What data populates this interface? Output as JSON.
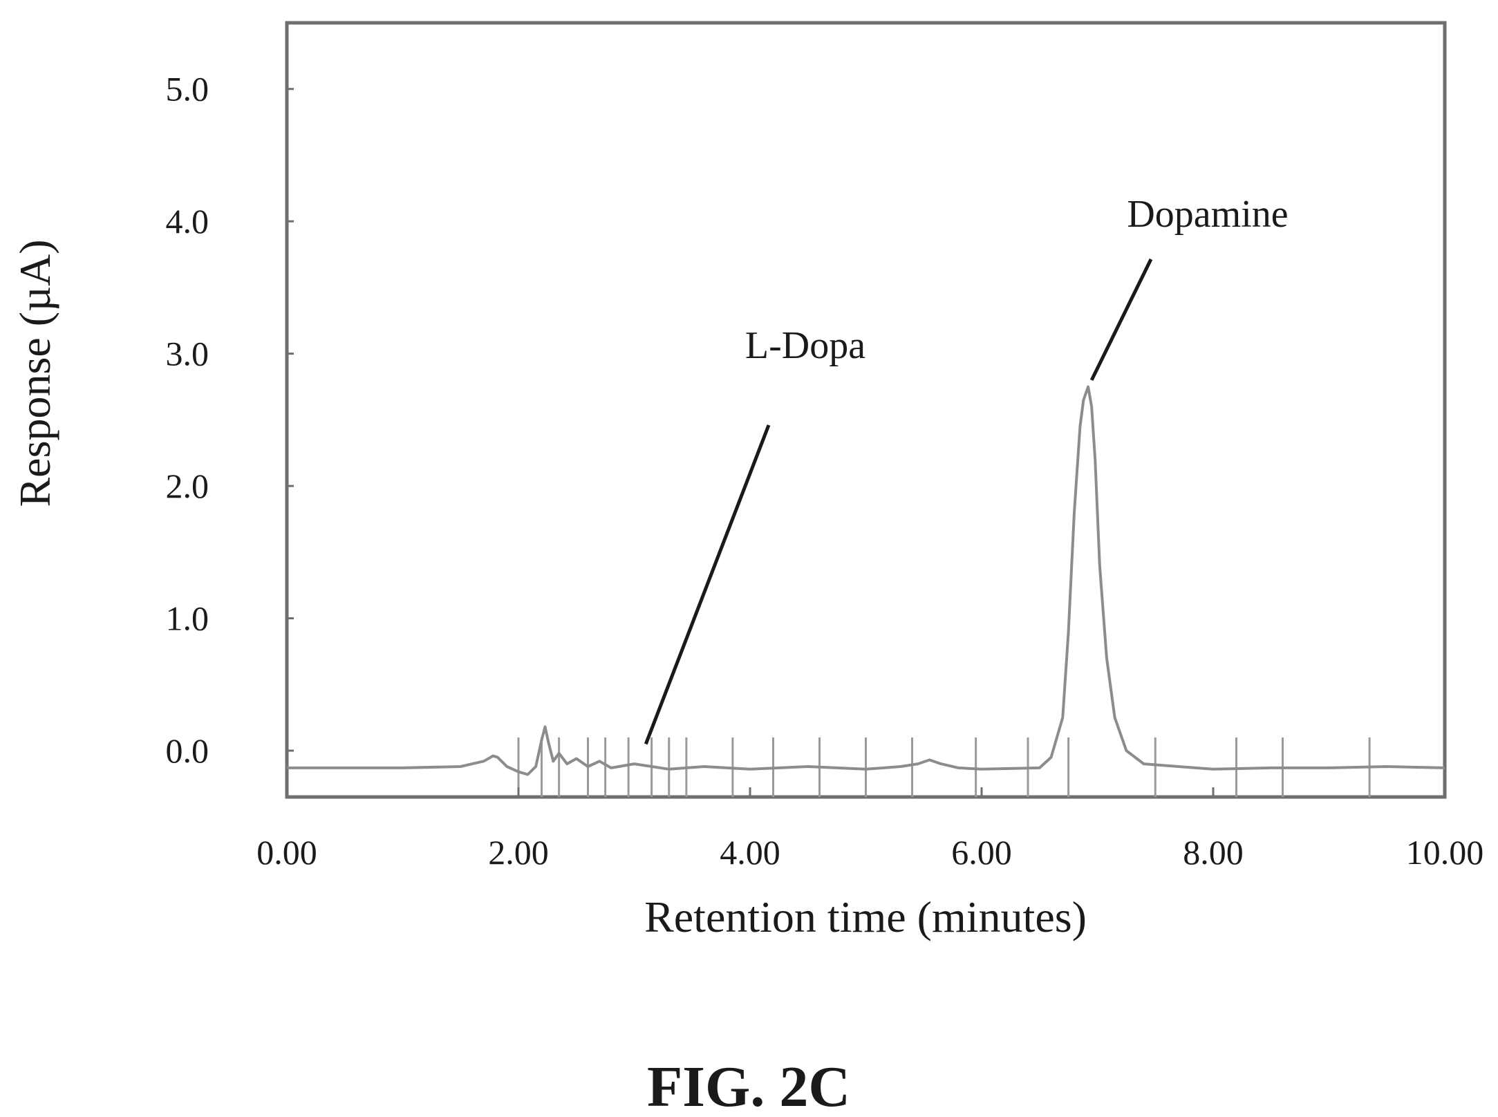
{
  "figure_label": "FIG. 2C",
  "chart_data": {
    "type": "line",
    "title": "",
    "xlabel": "Retention time (minutes)",
    "ylabel": "Response (µA)",
    "xlim": [
      0,
      10
    ],
    "ylim": [
      -0.35,
      5.5
    ],
    "x_ticks": [
      0,
      2,
      4,
      6,
      8,
      10
    ],
    "x_tick_labels": [
      "0.00",
      "2.00",
      "4.00",
      "6.00",
      "8.00",
      "10.00"
    ],
    "y_ticks": [
      0,
      1,
      2,
      3,
      4,
      5
    ],
    "y_tick_labels": [
      "0.0",
      "1.0",
      "2.0",
      "3.0",
      "4.0",
      "5.0"
    ],
    "grid": false,
    "legend": "none",
    "line_color": "#8c8c8c",
    "annotations": [
      {
        "text": "L-Dopa",
        "x": 3.1,
        "y": 0.05
      },
      {
        "text": "Dopamine",
        "x": 6.95,
        "y": 2.8
      }
    ],
    "baseline_markers_x": [
      2.0,
      2.2,
      2.35,
      2.6,
      2.75,
      2.95,
      3.15,
      3.3,
      3.45,
      3.85,
      4.2,
      4.6,
      5.0,
      5.4,
      5.95,
      6.4,
      6.75,
      7.5,
      8.2,
      8.6,
      9.35
    ],
    "series": [
      {
        "x": [
          0.0,
          1.0,
          1.5,
          1.6,
          1.7,
          1.78,
          1.82,
          1.9,
          2.0,
          2.08,
          2.15,
          2.2,
          2.23,
          2.26,
          2.3,
          2.35,
          2.42,
          2.5,
          2.6,
          2.7,
          2.8,
          3.0,
          3.3,
          3.6,
          4.0,
          4.5,
          5.0,
          5.3,
          5.45,
          5.55,
          5.65,
          5.8,
          6.0,
          6.5,
          6.6,
          6.7,
          6.75,
          6.8,
          6.85,
          6.88,
          6.92,
          6.95,
          6.98,
          7.02,
          7.08,
          7.15,
          7.25,
          7.4,
          7.7,
          8.0,
          8.5,
          9.0,
          9.5,
          10.0
        ],
        "y": [
          -0.13,
          -0.13,
          -0.12,
          -0.1,
          -0.08,
          -0.04,
          -0.05,
          -0.12,
          -0.16,
          -0.18,
          -0.12,
          0.08,
          0.18,
          0.06,
          -0.08,
          -0.02,
          -0.1,
          -0.06,
          -0.12,
          -0.08,
          -0.13,
          -0.1,
          -0.14,
          -0.12,
          -0.14,
          -0.12,
          -0.14,
          -0.12,
          -0.1,
          -0.07,
          -0.1,
          -0.13,
          -0.14,
          -0.13,
          -0.05,
          0.25,
          0.9,
          1.8,
          2.45,
          2.65,
          2.75,
          2.6,
          2.2,
          1.4,
          0.7,
          0.25,
          0.0,
          -0.1,
          -0.12,
          -0.14,
          -0.13,
          -0.13,
          -0.12,
          -0.13
        ]
      }
    ]
  }
}
